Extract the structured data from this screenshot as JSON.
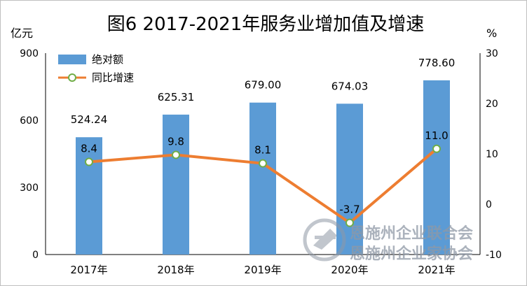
{
  "chart_data": {
    "type": "bar",
    "title": "图6 2017-2021年服务业增加值及增速",
    "categories": [
      "2017年",
      "2018年",
      "2019年",
      "2020年",
      "2021年"
    ],
    "y_left": {
      "label": "亿元",
      "ylim": [
        0,
        900
      ],
      "ticks": [
        "0",
        "300",
        "600",
        "900"
      ]
    },
    "y_right": {
      "label": "%",
      "ylim": [
        -10,
        30
      ],
      "ticks": [
        "-10",
        "0",
        "10",
        "20",
        "30"
      ]
    },
    "series": [
      {
        "name": "绝对额",
        "type": "bar",
        "axis": "left",
        "color": "#5b9bd5",
        "values": [
          524.24,
          625.31,
          679.0,
          674.03,
          778.6
        ],
        "labels": [
          "524.24",
          "625.31",
          "679.00",
          "674.03",
          "778.60"
        ]
      },
      {
        "name": "同比增速",
        "type": "line",
        "axis": "right",
        "color": "#ed7d31",
        "values": [
          8.4,
          9.8,
          8.1,
          -3.7,
          11.0
        ],
        "labels": [
          "8.4",
          "9.8",
          "8.1",
          "-3.7",
          "11.0"
        ]
      }
    ],
    "legend": "top-left",
    "grid": false
  },
  "watermark": {
    "line1": "恩施州企业联合会",
    "line2": "恩施州企业家协会",
    "logo_name": "logo-icon"
  }
}
